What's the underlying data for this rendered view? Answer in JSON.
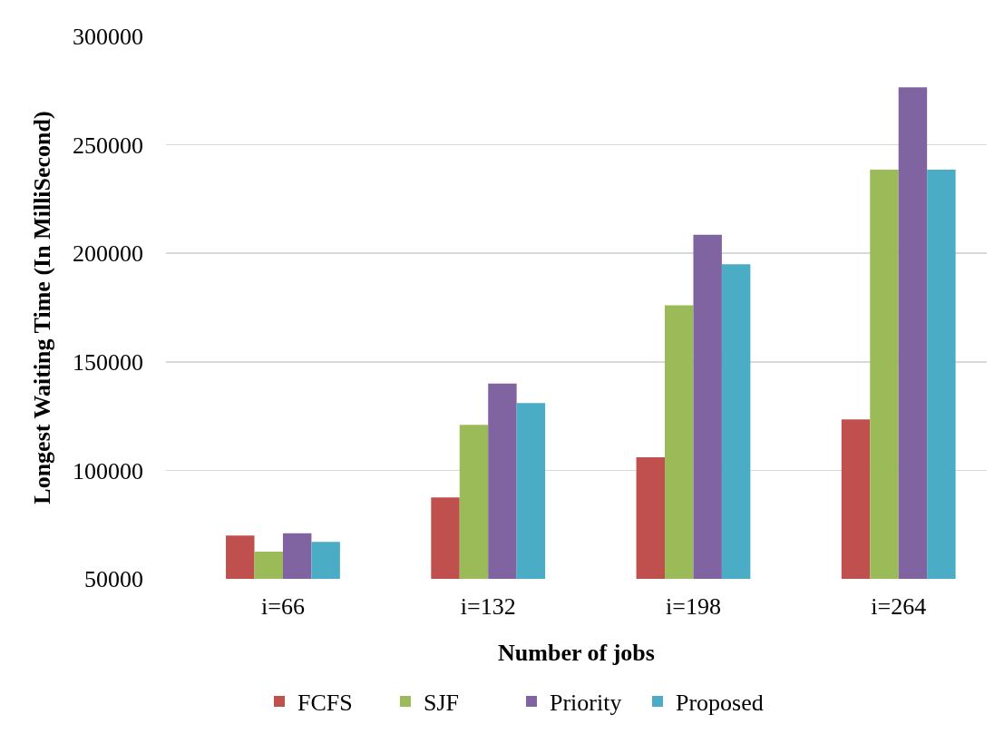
{
  "chart_data": {
    "type": "bar",
    "xlabel": "Number of jobs",
    "ylabel": "Longest Waiting Time (In MilliSecond)",
    "categories": [
      "i=66",
      "i=132",
      "i=198",
      "i=264"
    ],
    "series": [
      {
        "name": "FCFS",
        "color": "#c0504d",
        "values": [
          70000,
          87500,
          106000,
          123500
        ]
      },
      {
        "name": "SJF",
        "color": "#9bbb59",
        "values": [
          62500,
          121000,
          176000,
          238500
        ]
      },
      {
        "name": "Priority",
        "color": "#8064a2",
        "values": [
          71000,
          140000,
          208500,
          276500
        ]
      },
      {
        "name": "Proposed",
        "color": "#4bacc6",
        "values": [
          67000,
          131000,
          195000,
          238500
        ]
      }
    ],
    "ylim": [
      50000,
      300000
    ],
    "yticks": [
      50000,
      100000,
      150000,
      200000,
      250000,
      300000
    ],
    "grid": "y",
    "legend": "bottom"
  }
}
